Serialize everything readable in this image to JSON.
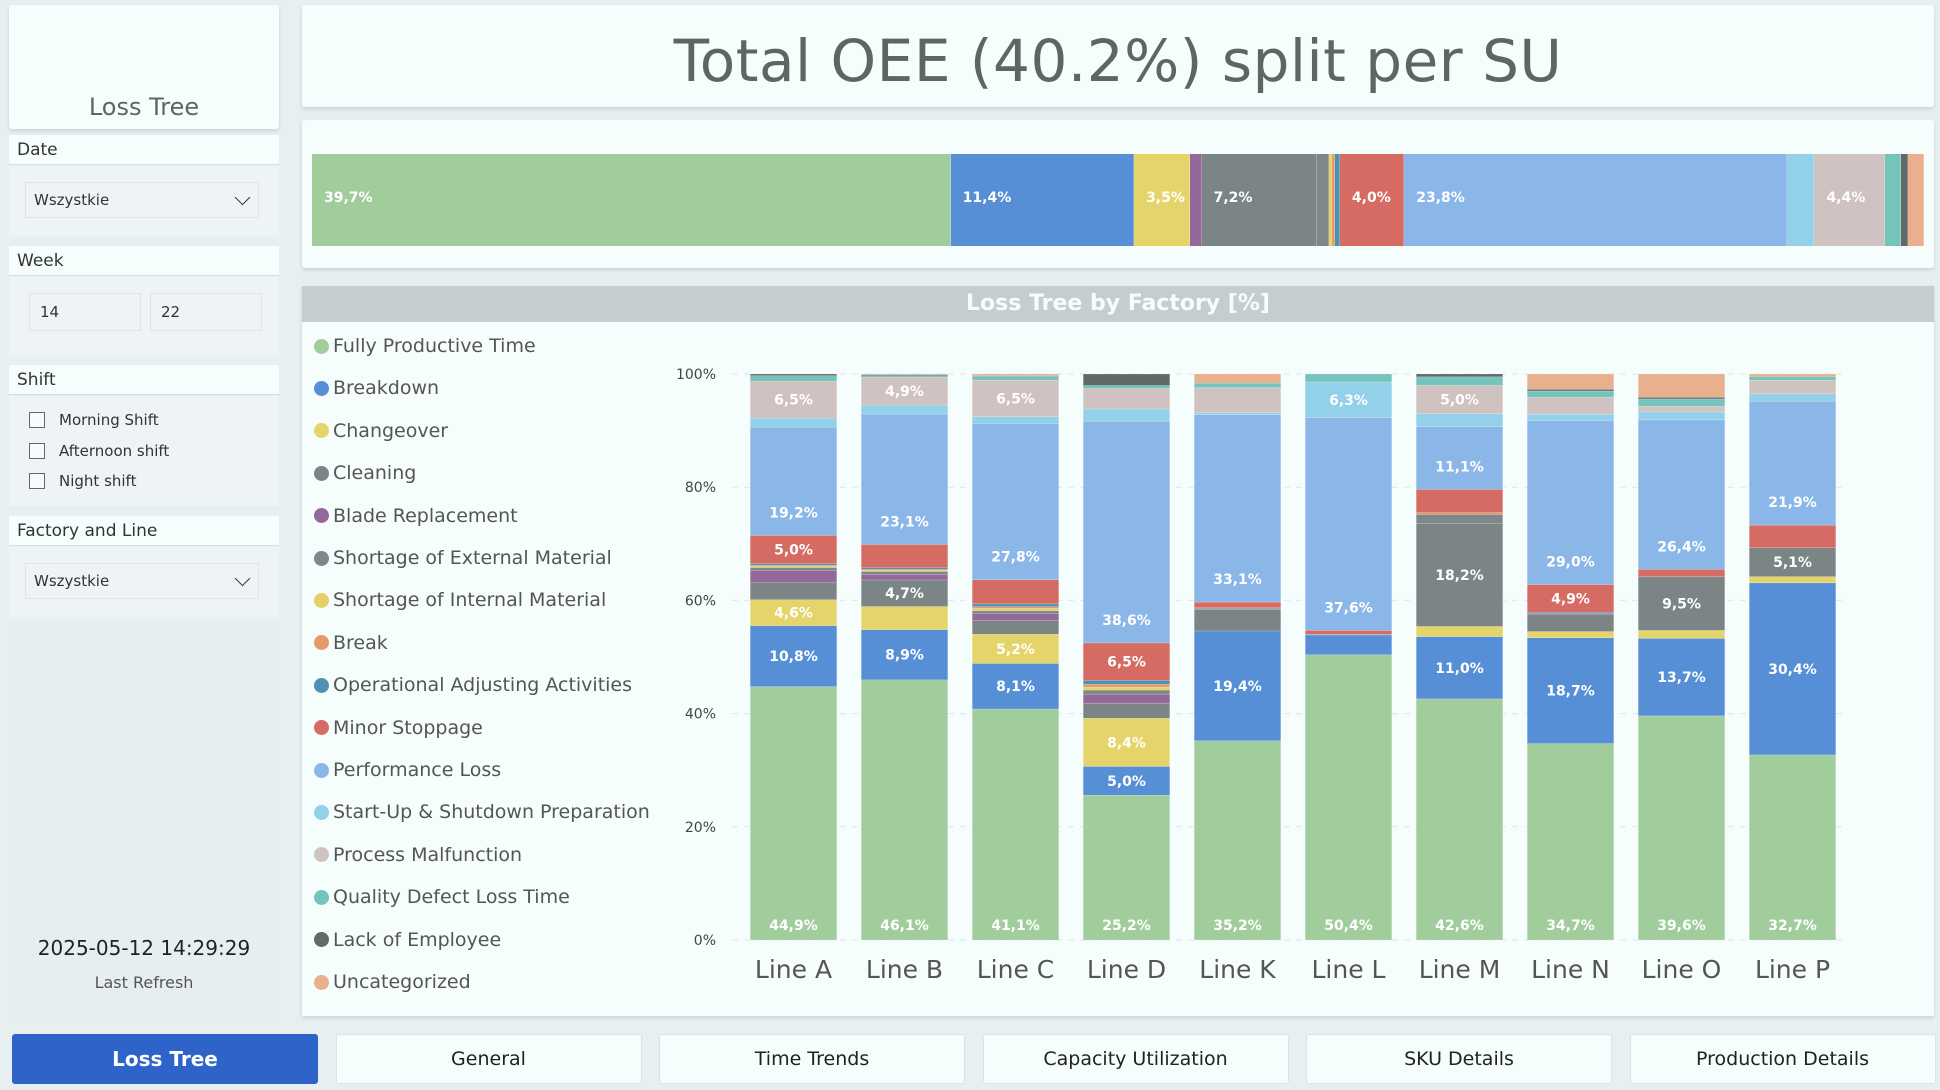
{
  "sidebar": {
    "app_title": "Loss Tree",
    "date": {
      "label": "Date",
      "value": "Wszystkie"
    },
    "week": {
      "label": "Week",
      "from": "14",
      "to": "22"
    },
    "shift": {
      "label": "Shift",
      "options": [
        {
          "label": "Morning Shift",
          "checked": false
        },
        {
          "label": "Afternoon shift",
          "checked": false
        },
        {
          "label": "Night shift",
          "checked": false
        }
      ]
    },
    "factory_line": {
      "label": "Factory and Line",
      "value": "Wszystkie"
    },
    "last_refresh": {
      "timestamp": "2025-05-12 14:29:29",
      "label": "Last Refresh"
    }
  },
  "header": {
    "title": "Total OEE (40.2%) split per SU"
  },
  "nav": {
    "tabs": [
      {
        "label": "Loss Tree",
        "active": true
      },
      {
        "label": "General",
        "active": false
      },
      {
        "label": "Time Trends",
        "active": false
      },
      {
        "label": "Capacity Utilization",
        "active": false
      },
      {
        "label": "SKU Details",
        "active": false
      },
      {
        "label": "Production Details",
        "active": false
      }
    ]
  },
  "colors": {
    "Fully Productive Time": "#a1cc9c",
    "Breakdown": "#568fd6",
    "Changeover": "#e5d46a",
    "Cleaning": "#7c8585",
    "Blade Replacement": "#95689a",
    "Shortage of External Material": "#7f8888",
    "Shortage of Internal Material": "#e6cf67",
    "Break": "#e6996b",
    "Operational Adjusting Activities": "#4e91b0",
    "Minor Stoppage": "#d56b62",
    "Performance Loss": "#8bb7e8",
    "Start-Up & Shutdown Preparation": "#93d0ea",
    "Process Malfunction": "#d1c2c2",
    "Quality Defect Loss Time": "#74c4bb",
    "Lack of Employee": "#636868",
    "Uncategorized": "#e8b08c",
    "nav_active": "#2e63c9"
  },
  "chart_data": [
    {
      "type": "bar",
      "stacked": "horizontal-100%",
      "title": "Total OEE (40.2%) split per SU",
      "categories": [
        "Fully Productive Time",
        "Breakdown",
        "Changeover",
        "Blade Replacement",
        "Cleaning",
        "Shortage of External Material",
        "Shortage of Internal Material",
        "Break",
        "Operational Adjusting Activities",
        "Minor Stoppage",
        "Performance Loss",
        "Start-Up & Shutdown Preparation",
        "Process Malfunction",
        "Quality Defect Loss Time",
        "Lack of Employee",
        "Uncategorized"
      ],
      "values": [
        39.7,
        11.4,
        3.5,
        0.7,
        7.2,
        0.7,
        0.2,
        0.2,
        0.3,
        4.0,
        23.8,
        1.7,
        4.4,
        1.0,
        0.4,
        1.0
      ],
      "labels": [
        "39,7%",
        "11,4%",
        "3,5%",
        "",
        "7,2%",
        "",
        "",
        "",
        "",
        "4,0%",
        "23,8%",
        "",
        "4,4%",
        "",
        "",
        ""
      ]
    },
    {
      "type": "bar",
      "stacked": "vertical-100%",
      "title": "Loss Tree by Factory [%]",
      "xlabel": "",
      "ylabel": "",
      "ylim": [
        0,
        100
      ],
      "yticks": [
        "0%",
        "20%",
        "40%",
        "60%",
        "80%",
        "100%"
      ],
      "legend": "left",
      "x": [
        "Line A",
        "Line B",
        "Line C",
        "Line D",
        "Line K",
        "Line L",
        "Line M",
        "Line N",
        "Line O",
        "Line P"
      ],
      "series": [
        {
          "name": "Fully Productive Time",
          "values": [
            44.9,
            46.1,
            41.1,
            25.2,
            35.2,
            50.4,
            42.6,
            34.7,
            39.6,
            32.7
          ],
          "labels": [
            "44,9%",
            "46,1%",
            "41,1%",
            "25,2%",
            "35,2%",
            "50,4%",
            "42,6%",
            "34,7%",
            "39,6%",
            "32,7%"
          ]
        },
        {
          "name": "Breakdown",
          "values": [
            10.8,
            8.9,
            8.1,
            5.0,
            19.4,
            3.5,
            11.0,
            18.7,
            13.7,
            30.4
          ],
          "labels": [
            "10,8%",
            "8,9%",
            "8,1%",
            "5,0%",
            "19,4%",
            "",
            "11,0%",
            "18,7%",
            "13,7%",
            "30,4%"
          ]
        },
        {
          "name": "Changeover",
          "values": [
            4.6,
            4.1,
            5.2,
            8.4,
            0,
            0,
            1.8,
            1.1,
            1.4,
            1.1
          ],
          "labels": [
            "4,6%",
            "",
            "5,2%",
            "8,4%",
            "",
            "",
            "",
            "",
            "",
            ""
          ]
        },
        {
          "name": "Cleaning",
          "values": [
            3.0,
            4.7,
            2.4,
            2.6,
            3.8,
            0,
            18.2,
            3.0,
            9.5,
            5.1
          ],
          "labels": [
            "",
            "4,7%",
            "",
            "",
            "",
            "",
            "18,2%",
            "",
            "9,5%",
            "5,1%"
          ]
        },
        {
          "name": "Blade Replacement",
          "values": [
            2.2,
            1.0,
            1.3,
            1.6,
            0,
            0,
            0,
            0.2,
            0,
            0
          ],
          "labels": [
            "",
            "",
            "",
            "",
            "",
            "",
            "",
            "",
            "",
            ""
          ]
        },
        {
          "name": "Shortage of External Material",
          "values": [
            0.5,
            0.5,
            0.5,
            0.7,
            0.2,
            0,
            1.6,
            0,
            0,
            0
          ],
          "labels": [
            "",
            "",
            "",
            "",
            "",
            "",
            "",
            "",
            "",
            ""
          ]
        },
        {
          "name": "Shortage of Internal Material",
          "values": [
            0.2,
            0.2,
            0.4,
            0.5,
            0,
            0,
            0,
            0,
            0,
            0
          ],
          "labels": [
            "",
            "",
            "",
            "",
            "",
            "",
            "",
            "",
            "",
            ""
          ]
        },
        {
          "name": "Break",
          "values": [
            0.2,
            0.2,
            0.3,
            0.5,
            0,
            0,
            0.3,
            0,
            0,
            0
          ],
          "labels": [
            "",
            "",
            "",
            "",
            "",
            "",
            "",
            "",
            "",
            ""
          ]
        },
        {
          "name": "Operational Adjusting Activities",
          "values": [
            0.3,
            0.3,
            0.5,
            0.7,
            0.1,
            0.1,
            0,
            0.2,
            0,
            0
          ],
          "labels": [
            "",
            "",
            "",
            "",
            "",
            "",
            "",
            "",
            "",
            ""
          ]
        },
        {
          "name": "Minor Stoppage",
          "values": [
            5.0,
            4.1,
            4.3,
            6.5,
            1.0,
            0.7,
            4.1,
            4.9,
            1.3,
            4.0
          ],
          "labels": [
            "5,0%",
            "",
            "",
            "6,5%",
            "",
            "",
            "",
            "4,9%",
            "",
            ""
          ]
        },
        {
          "name": "Performance Loss",
          "values": [
            19.2,
            23.1,
            27.8,
            38.6,
            33.1,
            37.6,
            11.1,
            29.0,
            26.4,
            21.9
          ],
          "labels": [
            "19,2%",
            "23,1%",
            "27,8%",
            "38,6%",
            "33,1%",
            "37,6%",
            "11,1%",
            "29,0%",
            "26,4%",
            "21,9%"
          ]
        },
        {
          "name": "Start-Up & Shutdown Preparation",
          "values": [
            1.6,
            1.6,
            1.2,
            2.1,
            0.4,
            6.3,
            2.3,
            1.1,
            1.4,
            1.3
          ],
          "labels": [
            "",
            "",
            "",
            "",
            "",
            "6,3%",
            "",
            "",
            "",
            ""
          ]
        },
        {
          "name": "Process Malfunction",
          "values": [
            6.5,
            4.9,
            6.5,
            3.6,
            4.4,
            0,
            5.0,
            3.0,
            1.0,
            2.4
          ],
          "labels": [
            "6,5%",
            "4,9%",
            "6,5%",
            "",
            "",
            "",
            "5,0%",
            "",
            "",
            ""
          ]
        },
        {
          "name": "Quality Defect Loss Time",
          "values": [
            1.0,
            0.3,
            0.7,
            0.5,
            0.8,
            1.4,
            1.5,
            1.1,
            1.3,
            0.6
          ],
          "labels": [
            "",
            "",
            "",
            "",
            "",
            "",
            "",
            "",
            "",
            ""
          ]
        },
        {
          "name": "Lack of Employee",
          "values": [
            0.3,
            0.2,
            0.1,
            2.0,
            0,
            0,
            0.5,
            0.3,
            0.3,
            0.1
          ],
          "labels": [
            "",
            "",
            "",
            "",
            "",
            "",
            "",
            "",
            "",
            ""
          ]
        },
        {
          "name": "Uncategorized",
          "values": [
            0,
            0.1,
            0.3,
            0,
            1.6,
            0,
            0,
            2.7,
            4.1,
            0.4
          ],
          "labels": [
            "",
            "",
            "",
            "",
            "",
            "",
            "",
            "",
            "",
            ""
          ]
        }
      ]
    }
  ]
}
